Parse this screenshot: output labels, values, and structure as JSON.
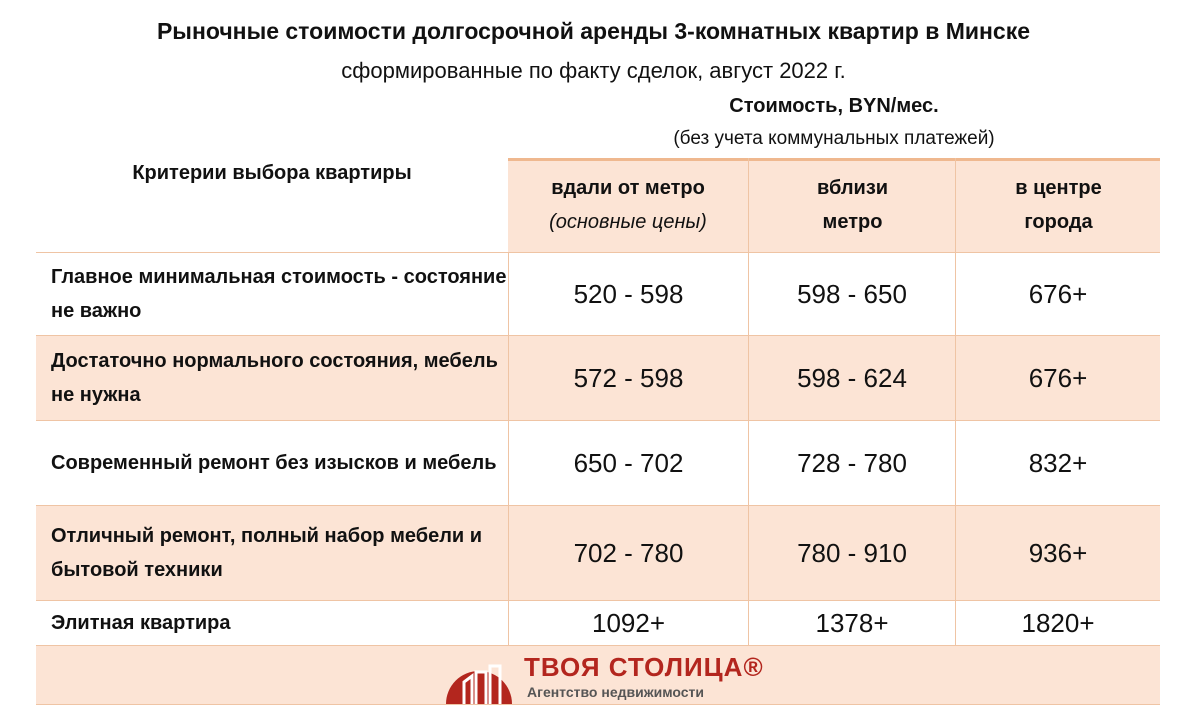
{
  "title": "Рыночные стоимости долгосрочной аренды 3-комнатных квартир в Минске",
  "subtitle": "сформированные по факту сделок, август 2022 г.",
  "cost_header": "Стоимость, BYN/мес.",
  "cost_note": "(без учета коммунальных платежей)",
  "criteria_header": "Критерии выбора квартиры",
  "columns": [
    {
      "label": "вдали от метро",
      "note": "(основные цены)"
    },
    {
      "label": "вблизи",
      "label2": "метро"
    },
    {
      "label": "в центре",
      "label2": "города"
    }
  ],
  "rows": [
    {
      "criteria": "Главное минимальная стоимость - состояние не важно",
      "values": [
        "520 - 598",
        "598 - 650",
        "676+"
      ]
    },
    {
      "criteria": "Достаточно нормального состояния, мебель не нужна",
      "values": [
        "572 - 598",
        "598 - 624",
        "676+"
      ]
    },
    {
      "criteria": "Современный ремонт без изысков и мебель",
      "values": [
        "650 - 702",
        "728 - 780",
        "832+"
      ]
    },
    {
      "criteria": "Отличный ремонт, полный набор мебели и бытовой техники",
      "values": [
        "702 - 780",
        "780 - 910",
        "936+"
      ]
    },
    {
      "criteria": "Элитная квартира",
      "values": [
        "1092+",
        "1378+",
        "1820+"
      ]
    }
  ],
  "logo": {
    "brand": "ТВОЯ СТОЛИЦА®",
    "tagline": "Агентство недвижимости",
    "color": "#b3261e"
  }
}
